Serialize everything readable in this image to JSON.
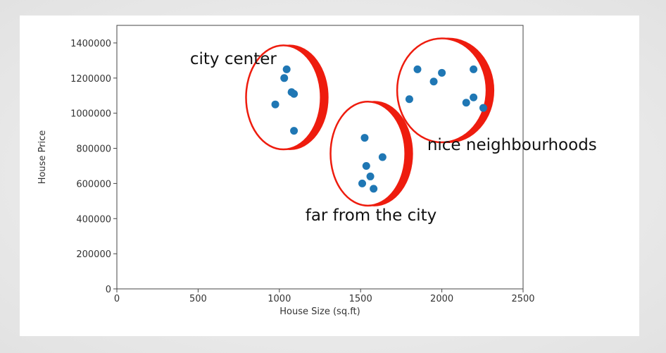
{
  "chart_data": {
    "type": "scatter",
    "title": "",
    "xlabel": "House Size (sq.ft)",
    "ylabel": "House Price",
    "xlim": [
      0,
      2500
    ],
    "ylim": [
      0,
      1500000
    ],
    "xticks": [
      0,
      500,
      1000,
      1500,
      2000,
      2500
    ],
    "yticks": [
      0,
      200000,
      400000,
      600000,
      800000,
      1000000,
      1200000,
      1400000
    ],
    "grid": false,
    "marker_color": "#1f77b4",
    "cluster_color": "#ee1c0e",
    "series": [
      {
        "name": "city center",
        "points": [
          {
            "x": 1045,
            "y": 1250000
          },
          {
            "x": 1030,
            "y": 1200000
          },
          {
            "x": 1075,
            "y": 1120000
          },
          {
            "x": 1090,
            "y": 1110000
          },
          {
            "x": 975,
            "y": 1050000
          },
          {
            "x": 1090,
            "y": 900000
          }
        ]
      },
      {
        "name": "far from the city",
        "points": [
          {
            "x": 1525,
            "y": 860000
          },
          {
            "x": 1635,
            "y": 750000
          },
          {
            "x": 1535,
            "y": 700000
          },
          {
            "x": 1560,
            "y": 640000
          },
          {
            "x": 1510,
            "y": 600000
          },
          {
            "x": 1580,
            "y": 570000
          }
        ]
      },
      {
        "name": "nice neighbourhoods",
        "points": [
          {
            "x": 1850,
            "y": 1250000
          },
          {
            "x": 1950,
            "y": 1180000
          },
          {
            "x": 2000,
            "y": 1230000
          },
          {
            "x": 1800,
            "y": 1080000
          },
          {
            "x": 2195,
            "y": 1250000
          },
          {
            "x": 2195,
            "y": 1090000
          },
          {
            "x": 2150,
            "y": 1060000
          },
          {
            "x": 2255,
            "y": 1030000
          }
        ]
      }
    ],
    "annotations": [
      {
        "text": "city center",
        "x": 450,
        "y": 1280000
      },
      {
        "text": "far from the city",
        "x": 1160,
        "y": 390000
      },
      {
        "text": "nice neighbourhoods",
        "x": 1910,
        "y": 790000
      }
    ],
    "clusters": [
      {
        "name": "city center",
        "cx": 1025,
        "cy": 1090000,
        "rx": 230,
        "ry": 300000
      },
      {
        "name": "far from the city",
        "cx": 1545,
        "cy": 770000,
        "rx": 230,
        "ry": 300000
      },
      {
        "name": "nice neighbourhoods",
        "cx": 2000,
        "cy": 1130000,
        "rx": 275,
        "ry": 300000
      }
    ]
  }
}
